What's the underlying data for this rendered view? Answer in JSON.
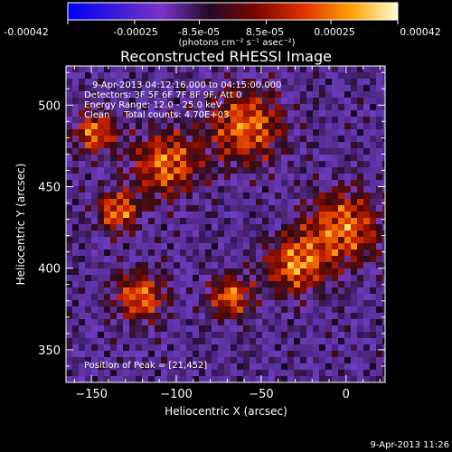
{
  "colorbar": {
    "tick_labels": [
      "-0.00042",
      "-0.00025",
      "-8.5e-05",
      "8.5e-05",
      "0.00025",
      "0.00042"
    ],
    "tick_values": [
      -0.00042,
      -0.00025,
      -8.5e-05,
      8.5e-05,
      0.00025,
      0.00042
    ],
    "range": [
      -0.00042,
      0.00042
    ],
    "unit_label": "(photons cm⁻² s⁻¹ asec⁻²)",
    "colors": [
      "#0000ff",
      "#3a1bd6",
      "#7a33c8",
      "#230a28",
      "#7a0600",
      "#e03000",
      "#ffa000",
      "#ffffd0"
    ]
  },
  "plot": {
    "title": "Reconstructed RHESSI Image",
    "info_lines": [
      "9-Apr-2013 04:12:16.000 to 04:15:00.000",
      "Detectors: 3F 5F 6F 7F 8F 9F, Att 0",
      "Energy Range: 12.0 - 25.0 keV",
      "Clean     Total counts: 4.70E+03"
    ],
    "peak_label": "Position of Peak = [21,452]",
    "footer_timestamp": "9-Apr-2013 11:26"
  },
  "chart_data": {
    "type": "heatmap",
    "title": "Reconstructed RHESSI Image",
    "xlabel": "Heliocentric X (arcsec)",
    "ylabel": "Heliocentric Y (arcsec)",
    "xlim": [
      -165,
      23
    ],
    "ylim": [
      330,
      524
    ],
    "x_ticks": [
      -150,
      -100,
      -50,
      0
    ],
    "x_tick_labels": [
      "−150",
      "−100",
      "−50",
      "0"
    ],
    "y_ticks": [
      350,
      400,
      450,
      500
    ],
    "y_tick_labels": [
      "350",
      "400",
      "450",
      "500"
    ],
    "peak": {
      "x": 21,
      "y": 452
    },
    "grid": false,
    "legend": "none"
  }
}
